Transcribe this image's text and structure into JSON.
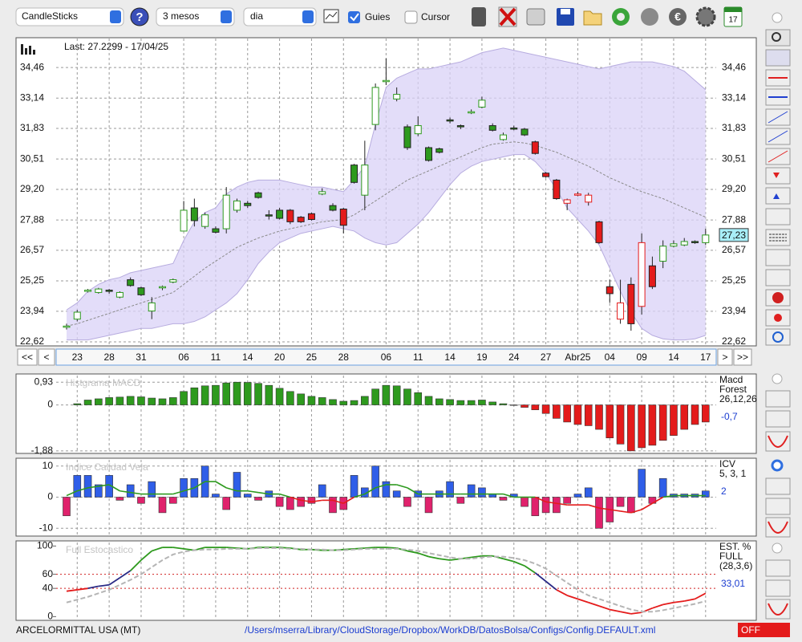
{
  "toolbar": {
    "chart_type": "CandleSticks",
    "period": "3 mesos",
    "interval": "dia",
    "guides": "Guies",
    "cursor": "Cursor",
    "calendar_day": "17"
  },
  "navigation": [
    "<<",
    "<",
    ">",
    ">>"
  ],
  "footer": {
    "symbol": "ARCELORMITTAL USA (MT)",
    "path": "/Users/mserra/Library/CloudStorage/Dropbox/WorkDB/DatosBolsa/Configs/Config.DEFAULT.xml",
    "status": "OFF"
  },
  "chart_data": [
    {
      "type": "candlestick",
      "title": "Last: 27.2299 - 17/04/25",
      "categories": [
        null,
        "23",
        null,
        null,
        "28",
        null,
        null,
        "31",
        null,
        null,
        null,
        "06",
        null,
        null,
        "11",
        null,
        null,
        "14",
        null,
        null,
        "20",
        null,
        null,
        "25",
        null,
        null,
        "28",
        null,
        null,
        null,
        "06",
        null,
        null,
        "11",
        null,
        null,
        "14",
        null,
        null,
        "19",
        null,
        null,
        "24",
        null,
        null,
        "27",
        null,
        null,
        "Abr25",
        null,
        null,
        "04",
        null,
        null,
        "09",
        null,
        null,
        "14",
        null,
        null,
        "17"
      ],
      "open": [
        23.25,
        23.6,
        24.8,
        24.75,
        24.85,
        24.55,
        25.3,
        24.95,
        23.95,
        24.95,
        25.2,
        27.4,
        28.4,
        27.6,
        27.5,
        27.5,
        28.3,
        28.6,
        29.05,
        28.1,
        28.3,
        28.3,
        28.0,
        28.15,
        29.0,
        28.5,
        28.35,
        30.25,
        28.95,
        32.0,
        33.85,
        33.1,
        31.9,
        31.6,
        31.0,
        30.95,
        32.2,
        31.95,
        32.5,
        32.75,
        31.95,
        31.35,
        31.85,
        31.8,
        31.25,
        29.9,
        29.6,
        28.6,
        28.95,
        28.65,
        27.8,
        25.0,
        23.6,
        25.1,
        24.15,
        25.9,
        26.1,
        26.75,
        26.8,
        26.95,
        26.9
      ],
      "high": [
        23.4,
        24.0,
        24.9,
        24.95,
        24.9,
        24.8,
        25.4,
        25.0,
        24.55,
        25.05,
        25.35,
        28.7,
        28.8,
        28.2,
        27.6,
        29.3,
        28.8,
        28.7,
        29.1,
        28.3,
        28.4,
        28.35,
        28.05,
        28.2,
        29.25,
        28.6,
        28.4,
        30.3,
        31.3,
        33.77,
        34.85,
        33.6,
        32.0,
        32.35,
        31.05,
        31.0,
        32.3,
        32.0,
        32.65,
        33.2,
        32.05,
        31.65,
        31.95,
        31.85,
        31.3,
        29.95,
        29.65,
        28.8,
        29.1,
        29.05,
        27.85,
        25.3,
        25.3,
        25.4,
        27.3,
        26.3,
        27.0,
        27.0,
        27.1,
        27.0,
        27.5
      ],
      "low": [
        23.15,
        23.5,
        24.75,
        24.7,
        24.7,
        24.5,
        25.0,
        24.6,
        23.6,
        24.85,
        25.15,
        27.4,
        27.6,
        27.5,
        27.3,
        27.3,
        28.2,
        28.4,
        28.8,
        27.9,
        27.9,
        27.7,
        27.75,
        27.85,
        28.95,
        28.25,
        27.3,
        29.45,
        28.3,
        31.75,
        33.7,
        33.0,
        30.9,
        31.5,
        30.4,
        30.75,
        32.05,
        31.8,
        32.45,
        32.7,
        31.7,
        31.3,
        31.75,
        31.5,
        30.7,
        29.7,
        28.75,
        28.3,
        28.9,
        28.5,
        26.85,
        24.3,
        23.4,
        23.1,
        23.8,
        24.9,
        25.8,
        26.7,
        26.75,
        26.85,
        26.8
      ],
      "close": [
        23.3,
        23.9,
        24.85,
        24.9,
        24.8,
        24.75,
        25.05,
        24.65,
        24.3,
        25.0,
        25.3,
        28.3,
        27.85,
        28.1,
        27.35,
        28.95,
        28.7,
        28.5,
        28.85,
        28.05,
        27.95,
        27.8,
        27.8,
        27.9,
        29.1,
        28.3,
        27.65,
        29.5,
        30.25,
        33.6,
        33.9,
        33.3,
        31.0,
        31.95,
        30.45,
        30.8,
        32.15,
        31.9,
        32.55,
        33.05,
        31.75,
        31.55,
        31.8,
        31.55,
        30.75,
        29.75,
        28.8,
        28.75,
        29.0,
        28.95,
        26.9,
        24.7,
        24.3,
        23.4,
        26.9,
        25.0,
        26.75,
        26.85,
        26.95,
        26.9,
        27.2299
      ],
      "colors": [
        "#2e9a1e",
        "#2e9a1e",
        "#2e9a1e",
        "#2e9a1e",
        "#2e9a1e",
        "#2e9a1e",
        "#2e9a1e",
        "#2e9a1e",
        "#2e9a1e",
        "#2e9a1e",
        "#2e9a1e",
        "#2e9a1e",
        "#2e9a1e",
        "#2e9a1e",
        "#2e9a1e",
        "#2e9a1e",
        "#2e9a1e",
        "#2e9a1e",
        "#2e9a1e",
        "#2e9a1e",
        "#2e9a1e",
        "#e41b1b",
        "#e41b1b",
        "#e41b1b",
        "#2e9a1e",
        "#2e9a1e",
        "#e41b1b",
        "#2e9a1e",
        "#2e9a1e",
        "#2e9a1e",
        "#2e9a1e",
        "#2e9a1e",
        "#2e9a1e",
        "#2e9a1e",
        "#2e9a1e",
        "#2e9a1e",
        "#2e9a1e",
        "#2e9a1e",
        "#2e9a1e",
        "#2e9a1e",
        "#2e9a1e",
        "#2e9a1e",
        "#2e9a1e",
        "#2e9a1e",
        "#e41b1b",
        "#e41b1b",
        "#e41b1b",
        "#e41b1b",
        "#e41b1b",
        "#e41b1b",
        "#e41b1b",
        "#e41b1b",
        "#e41b1b",
        "#e41b1b",
        "#e41b1b",
        "#e41b1b",
        "#2e9a1e",
        "#2e9a1e",
        "#2e9a1e",
        "#2e9a1e",
        "#2e9a1e"
      ],
      "upper": [
        24.0,
        24.3,
        24.8,
        25.1,
        25.3,
        25.4,
        25.6,
        25.7,
        25.8,
        25.9,
        26.0,
        27.0,
        27.8,
        28.2,
        28.4,
        29.0,
        29.3,
        29.5,
        29.6,
        29.6,
        29.6,
        29.5,
        29.4,
        29.3,
        29.3,
        29.2,
        29.1,
        29.6,
        30.2,
        32.0,
        33.6,
        34.0,
        34.2,
        34.4,
        34.4,
        34.5,
        34.6,
        34.7,
        34.9,
        35.1,
        35.2,
        35.3,
        35.2,
        35.1,
        35.0,
        34.9,
        34.8,
        34.7,
        34.6,
        34.5,
        34.4,
        34.5,
        34.6,
        34.7,
        34.7,
        34.7,
        34.6,
        34.5,
        34.3,
        33.9,
        33.5
      ],
      "lower": [
        22.7,
        22.7,
        22.7,
        22.8,
        22.9,
        23.0,
        23.1,
        23.2,
        23.2,
        23.3,
        23.4,
        23.4,
        23.5,
        23.7,
        24.0,
        24.3,
        24.7,
        25.3,
        26.0,
        26.5,
        26.9,
        27.1,
        27.3,
        27.4,
        27.5,
        27.6,
        27.5,
        27.4,
        27.1,
        26.9,
        26.8,
        26.9,
        27.3,
        27.7,
        28.2,
        28.8,
        29.4,
        29.9,
        30.2,
        30.4,
        30.5,
        30.6,
        30.7,
        30.7,
        30.4,
        29.9,
        29.2,
        28.4,
        27.9,
        27.4,
        26.8,
        25.8,
        24.8,
        23.9,
        23.2,
        22.9,
        22.75,
        22.7,
        22.7,
        22.75,
        22.9
      ],
      "middle": [
        23.3,
        23.4,
        23.55,
        23.7,
        23.85,
        24.0,
        24.15,
        24.3,
        24.45,
        24.6,
        24.75,
        25.1,
        25.45,
        25.8,
        26.1,
        26.4,
        26.7,
        26.9,
        27.1,
        27.25,
        27.4,
        27.5,
        27.6,
        27.7,
        27.8,
        27.85,
        27.9,
        28.1,
        28.4,
        28.7,
        29.0,
        29.3,
        29.6,
        29.8,
        30.0,
        30.2,
        30.4,
        30.6,
        30.8,
        31.0,
        31.15,
        31.2,
        31.25,
        31.2,
        31.1,
        30.95,
        30.8,
        30.6,
        30.4,
        30.2,
        29.95,
        29.7,
        29.5,
        29.3,
        29.1,
        28.95,
        28.8,
        28.6,
        28.4,
        28.2,
        28.0
      ],
      "band_color": "#d9d2f7",
      "band_edge_color": "#b7acdf",
      "middle_color": "#8a8a8a",
      "ylim": [
        22.48,
        35.71
      ],
      "yticks": [
        {
          "value": 34.46,
          "label": "34,46"
        },
        {
          "value": 33.14,
          "label": "33,14"
        },
        {
          "value": 31.83,
          "label": "31,83"
        },
        {
          "value": 30.51,
          "label": "30,51"
        },
        {
          "value": 29.2,
          "label": "29,20"
        },
        {
          "value": 27.88,
          "label": "27,88"
        },
        {
          "value": 26.57,
          "label": "26,57"
        },
        {
          "value": 25.25,
          "label": "25,25"
        },
        {
          "value": 23.94,
          "label": "23,94"
        },
        {
          "value": 22.62,
          "label": "22,62"
        }
      ],
      "grid": true,
      "last_label": "27,23"
    },
    {
      "type": "bar",
      "title": "Histgrama MACD",
      "name_lines": [
        "Macd",
        "Forest"
      ],
      "params": "26,12,26",
      "last_label": "-0,7",
      "values": [
        0,
        0.05,
        0.2,
        0.25,
        0.3,
        0.32,
        0.35,
        0.33,
        0.28,
        0.25,
        0.3,
        0.55,
        0.7,
        0.78,
        0.8,
        0.9,
        0.93,
        0.92,
        0.88,
        0.8,
        0.68,
        0.55,
        0.45,
        0.35,
        0.3,
        0.22,
        0.15,
        0.18,
        0.35,
        0.65,
        0.8,
        0.78,
        0.65,
        0.5,
        0.35,
        0.25,
        0.22,
        0.18,
        0.18,
        0.2,
        0.12,
        0.05,
        -0.02,
        -0.1,
        -0.2,
        -0.35,
        -0.55,
        -0.7,
        -0.8,
        -0.85,
        -1.0,
        -1.35,
        -1.6,
        -1.88,
        -1.75,
        -1.65,
        -1.45,
        -1.25,
        -1.0,
        -0.8,
        -0.7
      ],
      "color": "#2e9a1e",
      "negative_color": "#e41b1b",
      "ylim": [
        -1.95,
        1.2
      ],
      "yticks": [
        {
          "value": 0.93,
          "label": "0,93"
        },
        0,
        {
          "value": -1.88,
          "label": "-1,88"
        }
      ],
      "grid": true
    },
    {
      "type": "bar",
      "title": "Indice Calidad Vela",
      "name_lines": [
        "ICV"
      ],
      "params": "5, 3, 1",
      "last_label": "2",
      "values": [
        -6,
        7,
        7,
        4,
        7,
        -1,
        4,
        -2,
        5,
        -5,
        -2,
        6,
        6,
        10,
        1,
        -4,
        8,
        1,
        -1,
        2,
        -3,
        -4,
        -3,
        -2,
        4,
        -5,
        -4,
        7,
        3,
        10,
        5,
        2,
        -3,
        2,
        -5,
        2,
        5,
        -2,
        4,
        3,
        1,
        -1,
        1,
        -3,
        -6,
        -5,
        -5,
        -2,
        1,
        3,
        -10,
        -8,
        -3,
        -5,
        9,
        -2,
        6,
        1,
        1,
        1,
        2
      ],
      "color": "#2f5ee8",
      "negative_color": "#e0226c",
      "line": [
        0.5,
        2,
        3,
        3.5,
        4,
        2,
        1.5,
        1,
        1,
        1,
        1,
        2,
        3,
        5,
        5,
        3,
        2,
        2,
        1.5,
        1,
        1,
        0,
        -1,
        -1.5,
        -1,
        -1,
        -2,
        0,
        1,
        3,
        4,
        4,
        3,
        1,
        1,
        1,
        1,
        1,
        1,
        1,
        1,
        1,
        0,
        0,
        0,
        -1.5,
        -2,
        -2.5,
        -2.5,
        -2.5,
        -3.5,
        -4,
        -4.5,
        -5,
        -4,
        -2,
        0,
        0.5,
        0.5,
        0.5,
        0.5
      ],
      "line_color": "#2e9a1e",
      "line_negative_color": "#e41b1b",
      "ylim": [
        -12,
        12
      ],
      "yticks": [
        10,
        0,
        -10
      ],
      "grid": true
    },
    {
      "type": "line",
      "title": "Full Estocastico",
      "name_lines": [
        "EST. %",
        "FULL"
      ],
      "params": "(28,3,6)",
      "last_label": "33,01",
      "series": [
        {
          "values": [
            36,
            38,
            40,
            43,
            45,
            55,
            65,
            80,
            93,
            98,
            98,
            96,
            94,
            98,
            98,
            98,
            97,
            96,
            98,
            98,
            98,
            97,
            95,
            95,
            94,
            94,
            95,
            96,
            97,
            98,
            98,
            97,
            93,
            90,
            85,
            82,
            80,
            82,
            84,
            86,
            86,
            82,
            78,
            72,
            62,
            50,
            38,
            30,
            25,
            20,
            15,
            10,
            7,
            4,
            6,
            12,
            17,
            20,
            22,
            25,
            33.01
          ],
          "zone_colors": [
            "#e41b1b",
            "#2a2a86",
            "#2e9a1e"
          ]
        },
        {
          "values": [
            20,
            24,
            28,
            33,
            38,
            45,
            52,
            60,
            70,
            80,
            88,
            92,
            94,
            95,
            95,
            96,
            96,
            96,
            97,
            97,
            97,
            96,
            96,
            95,
            95,
            94,
            94,
            95,
            96,
            96,
            96,
            96,
            95,
            93,
            90,
            87,
            84,
            82,
            82,
            84,
            85,
            85,
            83,
            80,
            75,
            68,
            58,
            48,
            38,
            30,
            25,
            20,
            15,
            10,
            7,
            7,
            9,
            12,
            15,
            18,
            22
          ],
          "color": "#b5b5b5",
          "dashed": true
        }
      ],
      "levels": [
        40,
        60
      ],
      "level_color": "#d02020",
      "ylim": [
        -3,
        105
      ],
      "yticks": [
        100,
        60,
        40,
        0
      ],
      "grid": false
    }
  ]
}
